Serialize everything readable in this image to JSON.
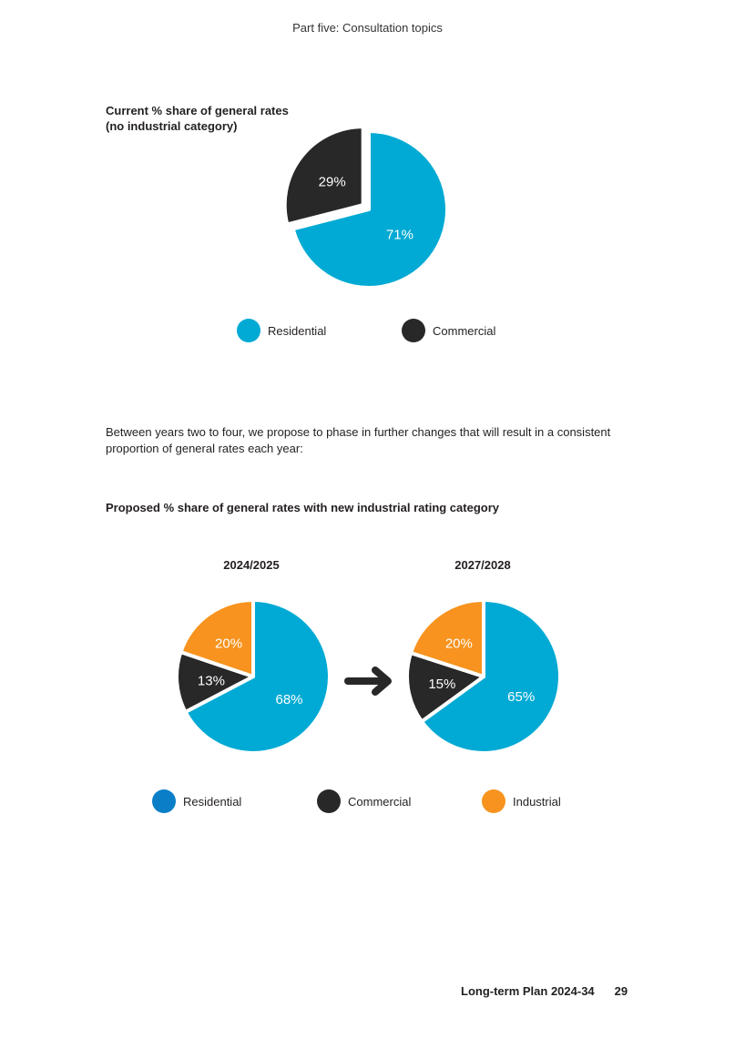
{
  "header": "Part five: Consultation topics",
  "current_chart_title_line1": "Current % share of general rates",
  "current_chart_title_line2": "(no industrial category)",
  "paragraph": "Between years two to four, we propose to phase in further changes that will result in a consistent proportion of general rates each year:",
  "proposed_title": "Proposed % share of general rates with new industrial rating category",
  "colors": {
    "residential": "#00aad4",
    "residential_legend_2": "#0a7fc7",
    "commercial": "#282828",
    "industrial": "#f7931e"
  },
  "legend_top": {
    "residential": "Residential",
    "commercial": "Commercial"
  },
  "legend_bottom": {
    "residential": "Residential",
    "commercial": "Commercial",
    "industrial": "Industrial"
  },
  "arrow_icon": "right-arrow-icon",
  "chart_data": [
    {
      "type": "pie",
      "title": "Current % share of general rates (no industrial category)",
      "slices": [
        {
          "name": "Residential",
          "value": 71,
          "label": "71%"
        },
        {
          "name": "Commercial",
          "value": 29,
          "label": "29%"
        }
      ]
    },
    {
      "type": "pie",
      "title": "2024/2025",
      "slices": [
        {
          "name": "Residential",
          "value": 68,
          "label": "68%"
        },
        {
          "name": "Commercial",
          "value": 13,
          "label": "13%"
        },
        {
          "name": "Industrial",
          "value": 20,
          "label": "20%"
        }
      ]
    },
    {
      "type": "pie",
      "title": "2027/2028",
      "slices": [
        {
          "name": "Residential",
          "value": 65,
          "label": "65%"
        },
        {
          "name": "Commercial",
          "value": 15,
          "label": "15%"
        },
        {
          "name": "Industrial",
          "value": 20,
          "label": "20%"
        }
      ]
    }
  ],
  "footer": {
    "doc_title": "Long-term Plan 2024-34",
    "page_number": "29"
  }
}
